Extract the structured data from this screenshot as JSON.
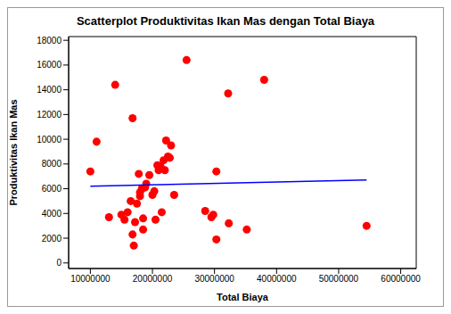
{
  "chart_data": {
    "type": "scatter",
    "title": "Scatterplot Produktivitas Ikan Mas dengan Total Biaya",
    "x_label": "Total Biaya",
    "y_label": "Produktivitas Ikan Mas",
    "xlim": [
      6500000,
      62500000
    ],
    "xticks": [
      10000000,
      20000000,
      30000000,
      40000000,
      50000000,
      60000000
    ],
    "ylim": [
      -450,
      18300
    ],
    "yticks": [
      0,
      2000,
      4000,
      6000,
      8000,
      10000,
      12000,
      14000,
      16000,
      18000
    ],
    "grid": false,
    "series": [
      {
        "type": "scatter",
        "marker": "circle",
        "color": "#ff0000",
        "x": [
          10000000,
          11000000,
          13000000,
          14000000,
          15000000,
          15500000,
          16000000,
          16500000,
          16800000,
          16800000,
          17000000,
          17200000,
          17500000,
          17800000,
          18000000,
          18000000,
          18300000,
          18500000,
          18500000,
          18800000,
          19000000,
          19500000,
          20000000,
          20300000,
          20500000,
          20800000,
          21000000,
          21300000,
          21500000,
          21800000,
          22000000,
          22200000,
          22500000,
          22800000,
          23000000,
          23500000,
          25500000,
          28500000,
          29500000,
          29800000,
          30300000,
          30300000,
          32200000,
          32300000,
          35200000,
          38000000,
          54500000
        ],
        "values": [
          7400,
          9800,
          3700,
          14400,
          3900,
          3500,
          4100,
          5000,
          11700,
          2300,
          1400,
          3300,
          4800,
          7200,
          5700,
          5400,
          6000,
          2700,
          3600,
          6100,
          6400,
          7100,
          5500,
          5800,
          3500,
          7900,
          7500,
          7800,
          4100,
          8300,
          7500,
          9900,
          8600,
          8500,
          9500,
          5500,
          16400,
          4200,
          3700,
          3900,
          7400,
          1900,
          13700,
          3200,
          2700,
          14800,
          3000
        ]
      },
      {
        "type": "line",
        "line_style": "solid",
        "color": "#0000ff",
        "x": [
          10000000,
          54500000
        ],
        "values": [
          6200,
          6700
        ]
      }
    ]
  }
}
